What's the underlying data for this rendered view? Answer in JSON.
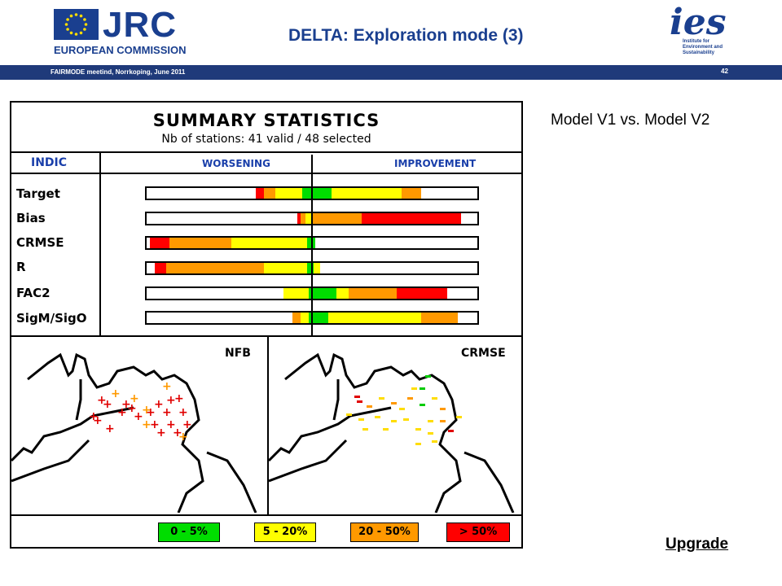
{
  "header": {
    "org_logo_text": "JRC",
    "org_subtitle": "EUROPEAN COMMISSION",
    "title": "DELTA: Exploration mode (3)",
    "ies_logo_letters": "ies",
    "ies_text_lines": [
      "Institute for",
      "Environment and",
      "Sustainability"
    ],
    "footer_left": "FAIRMODE meetind, Norrkoping, June 2011",
    "slide_number": "42"
  },
  "figure": {
    "title": "SUMMARY STATISTICS",
    "subtitle": "Nb of stations: 41 valid / 48 selected",
    "col_indic": "INDIC",
    "col_worsening": "WORSENING",
    "col_improvement": "IMPROVEMENT",
    "rows": [
      {
        "label": "Target",
        "segments": [
          {
            "from": 0.33,
            "to": 0.355,
            "color": "#ff0000"
          },
          {
            "from": 0.355,
            "to": 0.39,
            "color": "#ff9900"
          },
          {
            "from": 0.39,
            "to": 0.47,
            "color": "#ffff00"
          },
          {
            "from": 0.47,
            "to": 0.56,
            "color": "#00dd00"
          },
          {
            "from": 0.56,
            "to": 0.77,
            "color": "#ffff00"
          },
          {
            "from": 0.77,
            "to": 0.83,
            "color": "#ff9900"
          }
        ]
      },
      {
        "label": "Bias",
        "segments": [
          {
            "from": 0.455,
            "to": 0.465,
            "color": "#ff0000"
          },
          {
            "from": 0.465,
            "to": 0.48,
            "color": "#ff9900"
          },
          {
            "from": 0.48,
            "to": 0.5,
            "color": "#ffff00"
          },
          {
            "from": 0.5,
            "to": 0.65,
            "color": "#ff9900"
          },
          {
            "from": 0.65,
            "to": 0.95,
            "color": "#ff0000"
          }
        ]
      },
      {
        "label": "CRMSE",
        "segments": [
          {
            "from": 0.01,
            "to": 0.07,
            "color": "#ff0000"
          },
          {
            "from": 0.07,
            "to": 0.255,
            "color": "#ff9900"
          },
          {
            "from": 0.255,
            "to": 0.485,
            "color": "#ffff00"
          },
          {
            "from": 0.485,
            "to": 0.51,
            "color": "#00dd00"
          }
        ]
      },
      {
        "label": "R",
        "segments": [
          {
            "from": 0.025,
            "to": 0.06,
            "color": "#ff0000"
          },
          {
            "from": 0.06,
            "to": 0.355,
            "color": "#ff9900"
          },
          {
            "from": 0.355,
            "to": 0.485,
            "color": "#ffff00"
          },
          {
            "from": 0.485,
            "to": 0.505,
            "color": "#00dd00"
          },
          {
            "from": 0.505,
            "to": 0.525,
            "color": "#ffff00"
          }
        ]
      },
      {
        "label": "FAC2",
        "segments": [
          {
            "from": 0.415,
            "to": 0.49,
            "color": "#ffff00"
          },
          {
            "from": 0.49,
            "to": 0.575,
            "color": "#00dd00"
          },
          {
            "from": 0.575,
            "to": 0.61,
            "color": "#ffff00"
          },
          {
            "from": 0.61,
            "to": 0.755,
            "color": "#ff9900"
          },
          {
            "from": 0.755,
            "to": 0.91,
            "color": "#ff0000"
          }
        ]
      },
      {
        "label": "SigM/SigO",
        "segments": [
          {
            "from": 0.44,
            "to": 0.465,
            "color": "#ff9900"
          },
          {
            "from": 0.465,
            "to": 0.49,
            "color": "#ffff00"
          },
          {
            "from": 0.49,
            "to": 0.55,
            "color": "#00dd00"
          },
          {
            "from": 0.55,
            "to": 0.83,
            "color": "#ffff00"
          },
          {
            "from": 0.83,
            "to": 0.94,
            "color": "#ff9900"
          }
        ]
      }
    ],
    "map_left_label": "NFB",
    "map_right_label": "CRMSE",
    "legend": [
      {
        "label": "0 - 5%",
        "color": "#00dd00"
      },
      {
        "label": "5 - 20%",
        "color": "#ffff00"
      },
      {
        "label": "20 - 50%",
        "color": "#ff9900"
      },
      {
        "label": "> 50%",
        "color": "#ff0000"
      }
    ]
  },
  "side": {
    "comparison": "Model V1 vs. Model V2",
    "upgrade_link": "Upgrade"
  }
}
